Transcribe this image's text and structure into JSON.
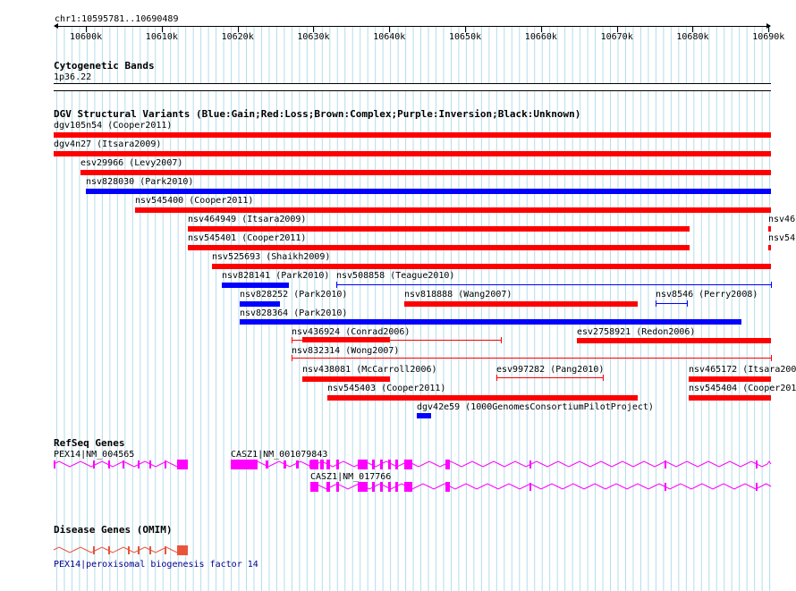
{
  "ruler": {
    "position": "chr1:10595781..10690489",
    "ticks": [
      "10600k",
      "10610k",
      "10620k",
      "10630k",
      "10640k",
      "10650k",
      "10660k",
      "10670k",
      "10680k",
      "10690k"
    ]
  },
  "cyto": {
    "title": "Cytogenetic Bands",
    "band": "1p36.22"
  },
  "dgv": {
    "title": "DGV Structural Variants (Blue:Gain;Red:Loss;Brown:Complex;Purple:Inversion;Black:Unknown)",
    "colors": {
      "gain": "#0000ff",
      "loss": "#ff0000"
    },
    "items": [
      {
        "label": "dgv105n54 (Cooper2011)",
        "type": "loss",
        "style": "bar"
      },
      {
        "label": "dgv4n27 (Itsara2009)",
        "type": "loss",
        "style": "bar"
      },
      {
        "label": "esv29966 (Levy2007)",
        "type": "loss",
        "style": "bar"
      },
      {
        "label": "nsv828030 (Park2010)",
        "type": "gain",
        "style": "bar"
      },
      {
        "label": "nsv545400 (Cooper2011)",
        "type": "loss",
        "style": "bar"
      },
      {
        "label": "nsv464949 (Itsara2009)",
        "type": "loss",
        "style": "bar"
      },
      {
        "label": "nsv46",
        "type": "loss",
        "style": "bar"
      },
      {
        "label": "nsv545401 (Cooper2011)",
        "type": "loss",
        "style": "bar"
      },
      {
        "label": "nsv54",
        "type": "loss",
        "style": "bar"
      },
      {
        "label": "nsv525693 (Shaikh2009)",
        "type": "loss",
        "style": "bar"
      },
      {
        "label": "nsv828141 (Park2010)",
        "type": "gain",
        "style": "bar"
      },
      {
        "label": "nsv508858 (Teague2010)",
        "type": "gain",
        "style": "line"
      },
      {
        "label": "nsv828252 (Park2010)",
        "type": "gain",
        "style": "bar"
      },
      {
        "label": "nsv818888 (Wang2007)",
        "type": "loss",
        "style": "bar"
      },
      {
        "label": "nsv8546 (Perry2008)",
        "type": "gain",
        "style": "line"
      },
      {
        "label": "nsv828364 (Park2010)",
        "type": "gain",
        "style": "bar"
      },
      {
        "label": "nsv436924 (Conrad2006)",
        "type": "loss",
        "style": "mixed"
      },
      {
        "label": "esv2758921 (Redon2006)",
        "type": "loss",
        "style": "bar"
      },
      {
        "label": "nsv832314 (Wong2007)",
        "type": "loss",
        "style": "line"
      },
      {
        "label": "nsv438081 (McCarroll2006)",
        "type": "loss",
        "style": "bar"
      },
      {
        "label": "esv997282 (Pang2010)",
        "type": "loss",
        "style": "line"
      },
      {
        "label": "nsv465172 (Itsara200",
        "type": "loss",
        "style": "bar"
      },
      {
        "label": "nsv545403 (Cooper2011)",
        "type": "loss",
        "style": "bar"
      },
      {
        "label": "nsv545404 (Cooper201",
        "type": "loss",
        "style": "bar"
      },
      {
        "label": "dgv42e59 (1000GenomesConsortiumPilotProject)",
        "type": "gain",
        "style": "bar"
      }
    ]
  },
  "refseq": {
    "title": "RefSeq Genes",
    "color": "#ff00ff",
    "genes": [
      {
        "label": "PEX14|NM_004565"
      },
      {
        "label": "CASZ1|NM_001079843"
      },
      {
        "label": "CASZ1|NM_017766"
      }
    ]
  },
  "omim": {
    "title": "Disease Genes (OMIM)",
    "color": "#e8553a",
    "gene_label": "PEX14|peroxisomal biogenesis factor 14"
  }
}
